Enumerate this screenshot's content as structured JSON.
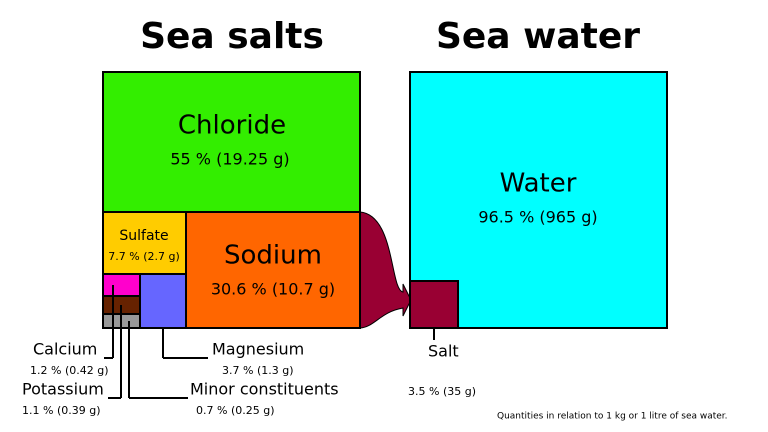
{
  "titles": {
    "left": "Sea salts",
    "right": "Sea water"
  },
  "salts": {
    "chloride": {
      "name": "Chloride",
      "amount": "55 % (19.25 g)"
    },
    "sodium": {
      "name": "Sodium",
      "amount": "30.6 % (10.7 g)"
    },
    "sulfate": {
      "name": "Sulfate",
      "amount": "7.7 % (2.7 g)"
    },
    "magnesium": {
      "name": "Magnesium",
      "amount": "3.7 % (1.3 g)"
    },
    "calcium": {
      "name": "Calcium",
      "amount": "1.2 % (0.42 g)"
    },
    "potassium": {
      "name": "Potassium",
      "amount": "1.1 % (0.39 g)"
    },
    "minor": {
      "name": "Minor constituents",
      "amount": "0.7 % (0.25 g)"
    }
  },
  "water": {
    "water": {
      "name": "Water",
      "amount": "96.5 % (965 g)"
    },
    "salt": {
      "name": "Salt",
      "amount": "3.5 % (35 g)"
    }
  },
  "note": "Quantities in relation to 1 kg or 1 litre of sea water."
}
